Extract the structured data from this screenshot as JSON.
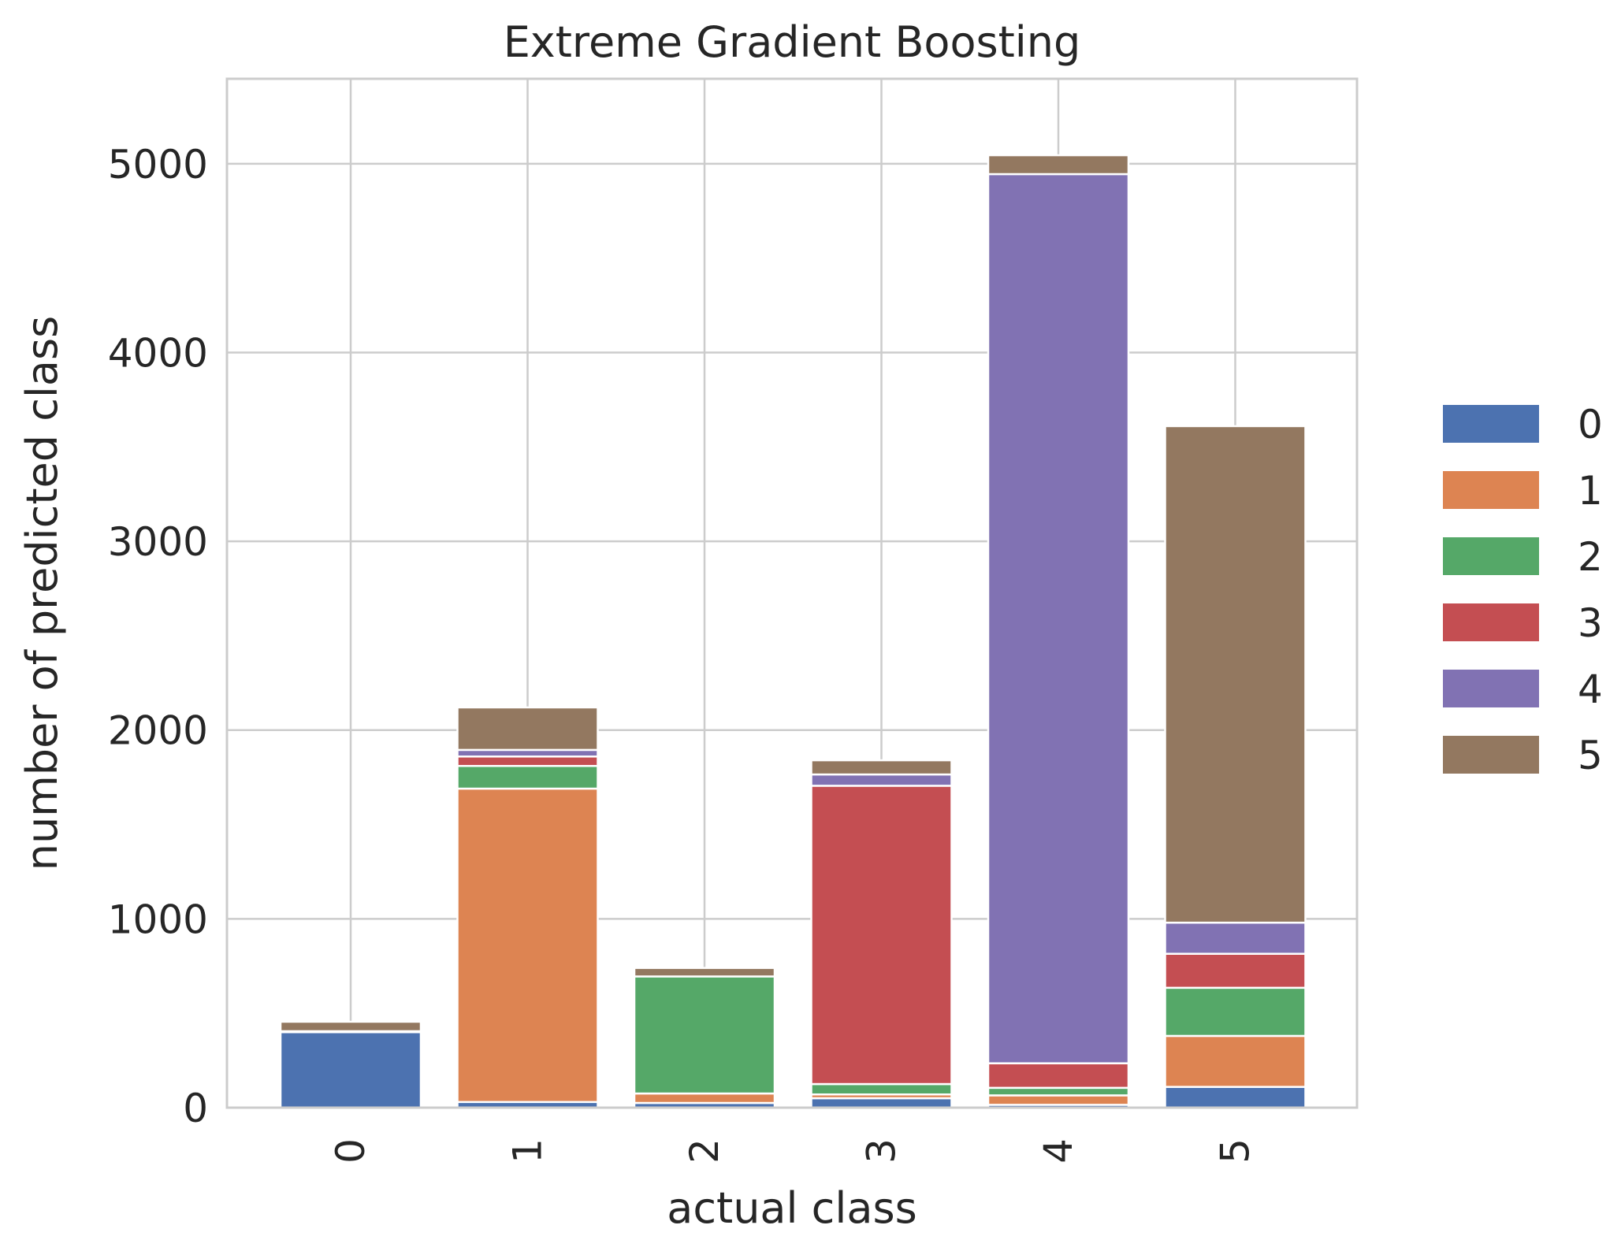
{
  "chart_data": {
    "type": "bar",
    "stacked": true,
    "title": "Extreme Gradient Boosting",
    "xlabel": "actual class",
    "ylabel": "number of predicted class",
    "categories": [
      "0",
      "1",
      "2",
      "3",
      "4",
      "5"
    ],
    "ylim": [
      0,
      5450
    ],
    "yticks": [
      0,
      1000,
      2000,
      3000,
      4000,
      5000
    ],
    "grid": true,
    "legend_position": "right",
    "series": [
      {
        "name": "0",
        "color": "#4c72b0",
        "values": [
          400,
          30,
          25,
          50,
          15,
          110
        ]
      },
      {
        "name": "1",
        "color": "#dd8452",
        "values": [
          0,
          1660,
          50,
          20,
          50,
          270
        ]
      },
      {
        "name": "2",
        "color": "#55a868",
        "values": [
          0,
          120,
          620,
          55,
          40,
          255
        ]
      },
      {
        "name": "3",
        "color": "#c44e52",
        "values": [
          5,
          50,
          0,
          1580,
          130,
          180
        ]
      },
      {
        "name": "4",
        "color": "#8172b3",
        "values": [
          0,
          35,
          0,
          60,
          4710,
          165
        ]
      },
      {
        "name": "5",
        "color": "#937860",
        "values": [
          50,
          225,
          45,
          75,
          100,
          2630
        ]
      }
    ]
  }
}
